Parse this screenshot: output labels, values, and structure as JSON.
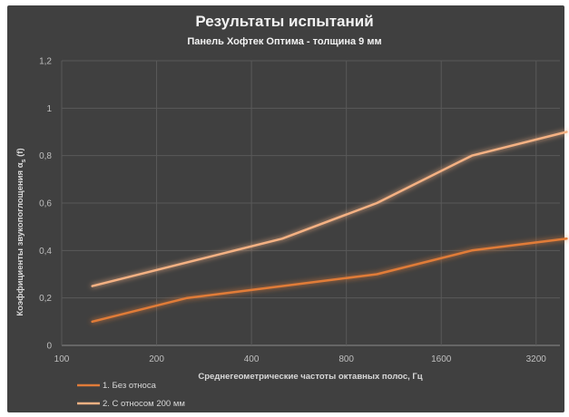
{
  "chart_data": {
    "type": "line",
    "title": "Результаты испытаний",
    "subtitle": "Панель Хофтек Оптима - толщина 9 мм",
    "xlabel": "Среднегеометрические частоты октавных полос, Гц",
    "ylabel_main": "Коэффициенты звукопоглощения α",
    "ylabel_sub": "s",
    "ylabel_tail": " (f)",
    "x_scale": "log2",
    "xlim": [
      100,
      4096
    ],
    "x_ticks": [
      "100",
      "200",
      "400",
      "800",
      "1600",
      "3200"
    ],
    "ylim": [
      0,
      1.2
    ],
    "y_ticks": [
      "0",
      "0,2",
      "0,4",
      "0,6",
      "0,8",
      "1",
      "1,2"
    ],
    "grid": true,
    "legend_position": "bottom-left",
    "x": [
      125,
      250,
      500,
      1000,
      2000,
      4000
    ],
    "series": [
      {
        "name": "1. Без относа",
        "color": "#e07b39",
        "values": [
          0.1,
          0.2,
          0.25,
          0.3,
          0.4,
          0.45
        ]
      },
      {
        "name": "2. С относом 200 мм",
        "color": "#f4b183",
        "values": [
          0.25,
          0.35,
          0.45,
          0.6,
          0.8,
          0.9
        ]
      }
    ]
  }
}
